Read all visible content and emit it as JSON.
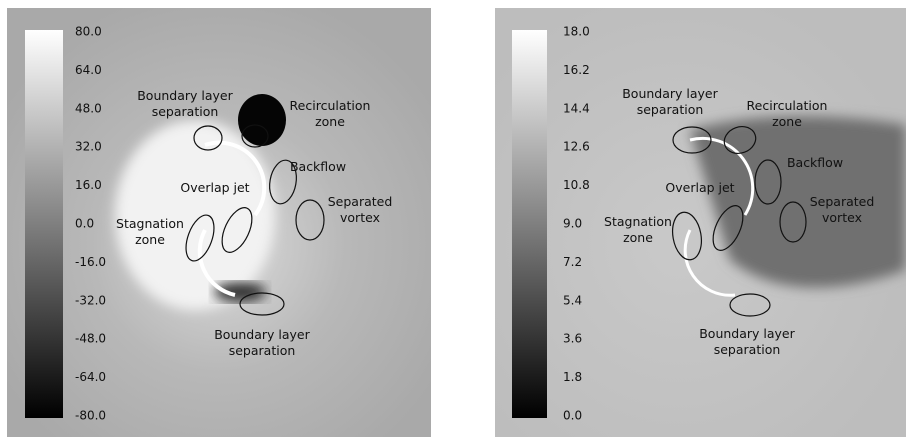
{
  "panels": [
    {
      "colorbar": {
        "ticks": [
          "80.0",
          "64.0",
          "48.0",
          "32.0",
          "16.0",
          "0.0",
          "-16.0",
          "-32.0",
          "-48.0",
          "-64.0",
          "-80.0"
        ]
      },
      "annotations": [
        {
          "lines": [
            "Boundary layer",
            "separation"
          ]
        },
        {
          "lines": [
            "Recirculation",
            "zone"
          ]
        },
        {
          "lines": [
            "Backflow"
          ]
        },
        {
          "lines": [
            "Separated",
            "vortex"
          ]
        },
        {
          "lines": [
            "Overlap jet"
          ]
        },
        {
          "lines": [
            "Stagnation",
            "zone"
          ]
        },
        {
          "lines": [
            "Boundary layer",
            "separation"
          ]
        }
      ]
    },
    {
      "colorbar": {
        "ticks": [
          "18.0",
          "16.2",
          "14.4",
          "12.6",
          "10.8",
          "9.0",
          "7.2",
          "5.4",
          "3.6",
          "1.8",
          "0.0"
        ]
      },
      "annotations": [
        {
          "lines": [
            "Boundary layer",
            "separation"
          ]
        },
        {
          "lines": [
            "Recirculation",
            "zone"
          ]
        },
        {
          "lines": [
            "Backflow"
          ]
        },
        {
          "lines": [
            "Separated",
            "vortex"
          ]
        },
        {
          "lines": [
            "Overlap jet"
          ]
        },
        {
          "lines": [
            "Stagnation",
            "zone"
          ]
        },
        {
          "lines": [
            "Boundary layer",
            "separation"
          ]
        }
      ]
    }
  ]
}
